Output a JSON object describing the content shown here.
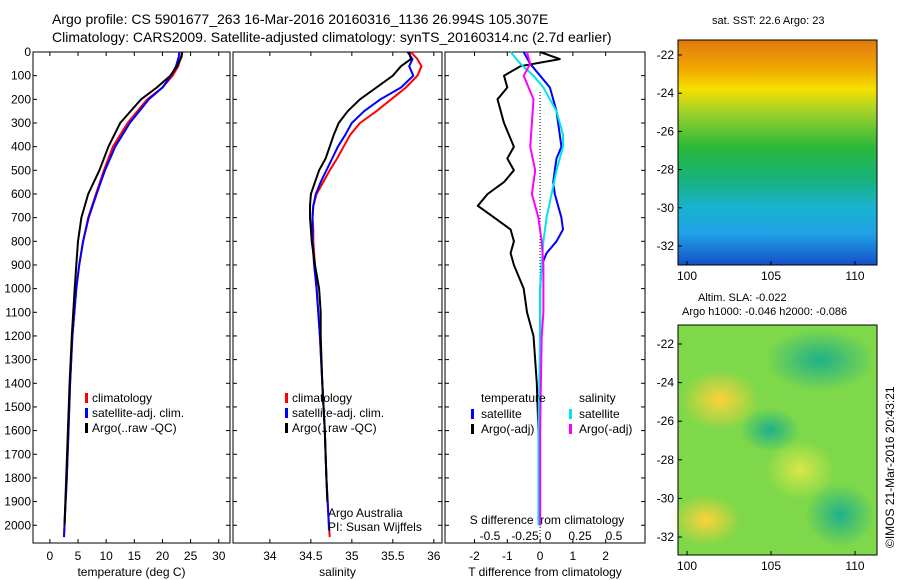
{
  "header": {
    "line1": "Argo profile: CS 5901677_263 16-Mar-2016 20160316_1136 26.994S 105.307E",
    "line2": "Climatology: CARS2009. Satellite-adjusted climatology: synTS_20160314.nc (2.7d earlier)"
  },
  "stamp": "©IMOS 21-Mar-2016 20:43:21",
  "colors": {
    "climatology": "#ff0000",
    "satellite": "#0000ff",
    "argo": "#000000",
    "cyan": "#00e5e5",
    "magenta": "#ff00ff"
  },
  "depth_axis": {
    "ylim": [
      0,
      2075
    ],
    "ticks": [
      0,
      100,
      200,
      300,
      400,
      500,
      600,
      700,
      800,
      900,
      1000,
      1100,
      1200,
      1300,
      1400,
      1500,
      1600,
      1700,
      1800,
      1900,
      2000
    ]
  },
  "chart_data": [
    {
      "type": "line",
      "xlabel": "temperature (deg C)",
      "xlim": [
        -3,
        32
      ],
      "xticks": [
        0,
        5,
        10,
        15,
        20,
        25,
        30
      ],
      "legend": [
        "climatology",
        "satellite-adj. clim.",
        "Argo(..raw -QC)"
      ],
      "series": [
        {
          "name": "climatology",
          "color": "#ff0000",
          "depth": [
            0,
            20,
            60,
            100,
            150,
            200,
            300,
            400,
            500,
            600,
            700,
            800,
            900,
            1000,
            1200,
            1400,
            1600,
            1800,
            2000,
            2050
          ],
          "x": [
            23.5,
            23.3,
            22.8,
            21.8,
            20.0,
            17.3,
            13.8,
            11.2,
            9.6,
            8.2,
            6.8,
            5.9,
            5.2,
            4.7,
            4.0,
            3.6,
            3.3,
            3.0,
            2.6,
            2.5
          ]
        },
        {
          "name": "satellite-adj. clim.",
          "color": "#0000ff",
          "depth": [
            0,
            20,
            60,
            100,
            150,
            200,
            300,
            400,
            500,
            600,
            700,
            800,
            900,
            1000,
            1200,
            1400,
            1600,
            1800,
            2000,
            2050
          ],
          "x": [
            23.0,
            22.9,
            22.4,
            21.5,
            20.0,
            17.6,
            14.2,
            11.6,
            9.8,
            8.3,
            6.9,
            5.9,
            5.2,
            4.7,
            4.0,
            3.6,
            3.3,
            3.0,
            2.6,
            2.5
          ]
        },
        {
          "name": "Argo(..raw -QC)",
          "color": "#000000",
          "depth": [
            0,
            20,
            60,
            100,
            150,
            200,
            300,
            400,
            500,
            600,
            700,
            800,
            900,
            1000,
            1200,
            1400,
            1600,
            1800,
            2000
          ],
          "x": [
            23.5,
            23.4,
            22.6,
            21.4,
            19.0,
            16.2,
            12.5,
            10.4,
            8.8,
            6.8,
            5.6,
            5.0,
            4.7,
            4.4,
            3.9,
            3.5,
            3.2,
            2.9,
            2.6
          ]
        }
      ]
    },
    {
      "type": "line",
      "xlabel": "salinity",
      "xlim": [
        33.55,
        36.1
      ],
      "xticks": [
        34,
        34.5,
        35,
        35.5,
        36
      ],
      "legend": [
        "climatology",
        "satellite-adj. clim.",
        "Argo(..raw -QC)"
      ],
      "series": [
        {
          "name": "climatology",
          "color": "#ff0000",
          "depth": [
            0,
            30,
            60,
            100,
            150,
            200,
            250,
            300,
            350,
            400,
            450,
            500,
            550,
            600,
            650,
            700,
            750,
            800,
            900,
            1000,
            1200,
            1400,
            1600,
            1800,
            2000,
            2050
          ],
          "x": [
            35.72,
            35.8,
            35.85,
            35.8,
            35.66,
            35.48,
            35.3,
            35.1,
            34.98,
            34.9,
            34.82,
            34.73,
            34.65,
            34.57,
            34.53,
            34.52,
            34.53,
            34.53,
            34.55,
            34.57,
            34.61,
            34.64,
            34.67,
            34.69,
            34.72,
            34.73
          ]
        },
        {
          "name": "satellite-adj. clim.",
          "color": "#0000ff",
          "depth": [
            0,
            30,
            60,
            100,
            150,
            200,
            250,
            300,
            350,
            400,
            450,
            500,
            550,
            600,
            650,
            700,
            750,
            800,
            900,
            1000,
            1200,
            1400,
            1600,
            1800,
            2000,
            2020
          ],
          "x": [
            35.68,
            35.74,
            35.7,
            35.75,
            35.6,
            35.35,
            35.15,
            35.0,
            34.92,
            34.83,
            34.76,
            34.69,
            34.62,
            34.56,
            34.53,
            34.52,
            34.52,
            34.52,
            34.54,
            34.57,
            34.61,
            34.64,
            34.67,
            34.69,
            34.72,
            34.72
          ]
        },
        {
          "name": "Argo(..raw -QC)",
          "color": "#000000",
          "depth": [
            0,
            30,
            60,
            100,
            150,
            200,
            250,
            300,
            350,
            400,
            450,
            500,
            550,
            600,
            650,
            700,
            750,
            800,
            900,
            1000,
            1100,
            1200,
            1400,
            1600,
            1800,
            1900
          ],
          "x": [
            35.7,
            35.72,
            35.6,
            35.5,
            35.3,
            35.1,
            34.95,
            34.84,
            34.78,
            34.73,
            34.68,
            34.6,
            34.55,
            34.5,
            34.49,
            34.49,
            34.5,
            34.51,
            34.55,
            34.6,
            34.62,
            34.62,
            34.64,
            34.67,
            34.69,
            34.7
          ]
        }
      ],
      "note": [
        "Argo Australia",
        "PI: Susan Wijffels"
      ]
    },
    {
      "type": "line",
      "xlabel": "T difference from climatology",
      "xlim": [
        -2.9,
        3.2
      ],
      "xticks": [
        -2,
        -1,
        0,
        1,
        2
      ],
      "title_top": "S difference from climatology",
      "top_ticks": [
        "-0.5",
        "-0.25",
        "0",
        "0.25",
        "0.5"
      ],
      "legend_groups": [
        {
          "heading": "temperature",
          "entries": [
            "satellite",
            "Argo(-adj)"
          ]
        },
        {
          "heading": "salinity",
          "entries": [
            "satellite",
            "Argo(-adj)"
          ]
        }
      ],
      "series": [
        {
          "name": "temperature satellite",
          "color": "#0000ff",
          "depth": [
            0,
            50,
            100,
            150,
            200,
            250,
            300,
            350,
            400,
            450,
            500,
            550,
            600,
            650,
            700,
            750,
            800,
            850,
            900,
            1000,
            1200,
            1600,
            2000
          ],
          "x": [
            -0.5,
            -0.3,
            0.0,
            0.3,
            0.4,
            0.5,
            0.55,
            0.6,
            0.65,
            0.5,
            0.45,
            0.4,
            0.45,
            0.55,
            0.65,
            0.7,
            0.5,
            0.2,
            0.05,
            0.0,
            0.0,
            0.0,
            0.0
          ]
        },
        {
          "name": "temperature Argo(-adj)",
          "color": "#000000",
          "depth": [
            0,
            30,
            60,
            100,
            150,
            200,
            300,
            400,
            450,
            500,
            550,
            600,
            650,
            700,
            750,
            800,
            850,
            900,
            1000,
            1100,
            1200,
            1400,
            1600,
            2000
          ],
          "x": [
            0.0,
            0.6,
            -0.6,
            -1.1,
            -1.0,
            -1.3,
            -1.1,
            -0.8,
            -1.0,
            -0.8,
            -1.1,
            -1.6,
            -1.9,
            -1.4,
            -0.9,
            -0.8,
            -0.9,
            -0.8,
            -0.5,
            -0.4,
            -0.2,
            -0.1,
            -0.05,
            0.0
          ]
        },
        {
          "name": "salinity satellite",
          "color": "#00e5e5",
          "depth": [
            0,
            50,
            100,
            150,
            200,
            250,
            300,
            350,
            400,
            500,
            600,
            700,
            800,
            900,
            1000,
            1200,
            1600,
            2000
          ],
          "x": [
            -0.9,
            -0.6,
            -0.2,
            0.1,
            0.3,
            0.5,
            0.6,
            0.7,
            0.7,
            0.5,
            0.35,
            0.2,
            0.1,
            0.05,
            0.0,
            0.0,
            -0.05,
            -0.05
          ]
        },
        {
          "name": "salinity Argo(-adj)",
          "color": "#ff00ff",
          "depth": [
            0,
            50,
            100,
            200,
            300,
            400,
            500,
            600,
            700,
            800,
            900,
            1000,
            1100,
            1200,
            1600,
            2000
          ],
          "x": [
            -0.4,
            -0.3,
            -0.5,
            -0.2,
            -0.25,
            -0.3,
            -0.15,
            -0.25,
            -0.05,
            0.05,
            0.1,
            0.1,
            0.1,
            0.05,
            0.0,
            0.0
          ]
        }
      ]
    }
  ],
  "maps": {
    "sst": {
      "title": "sat. SST: 22.6 Argo: 23",
      "lat_ticks": [
        -22,
        -24,
        -26,
        -28,
        -30,
        -32
      ],
      "lon_ticks": [
        100,
        105,
        110
      ]
    },
    "sla": {
      "title1": "Altim. SLA: -0.022",
      "title2": "Argo h1000: -0.046 h2000: -0.086",
      "lat_ticks": [
        -22,
        -24,
        -26,
        -28,
        -30,
        -32
      ],
      "lon_ticks": [
        100,
        105,
        110
      ]
    }
  }
}
